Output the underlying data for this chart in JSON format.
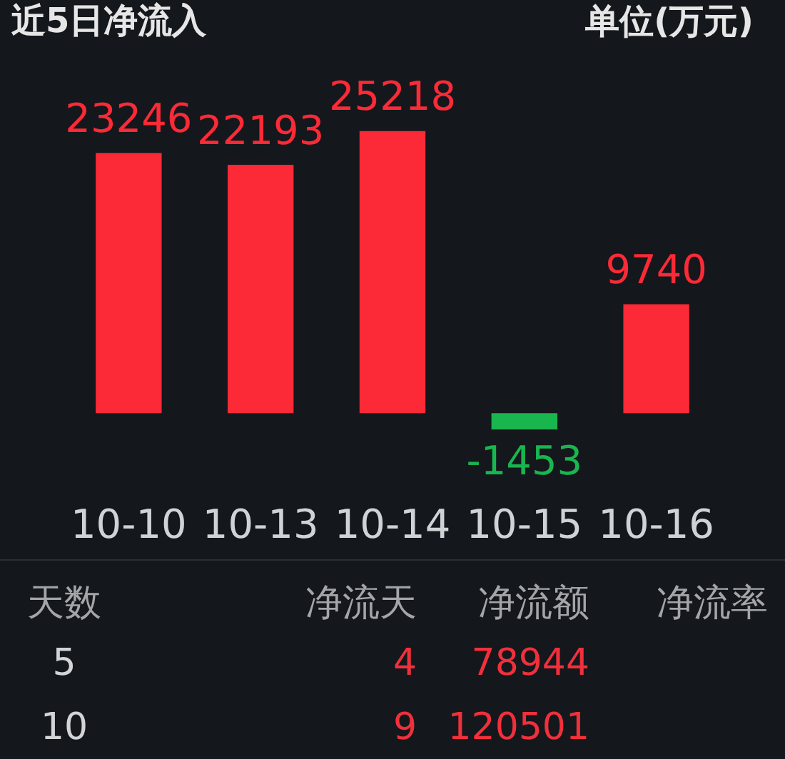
{
  "chart_data": [
    {
      "type": "bar",
      "title": "近5日净流入",
      "annotations": [
        "单位(万元)"
      ],
      "categories": [
        "10-10",
        "10-13",
        "10-14",
        "10-15",
        "10-16"
      ],
      "values": [
        23246,
        22193,
        25218,
        -1453,
        9740
      ],
      "colors": [
        "#fb2a36",
        "#fb2a36",
        "#fb2a36",
        "#19b64f",
        "#fb2a36"
      ],
      "data_labels": true,
      "tick_labels": "x"
    },
    {
      "type": "other",
      "ylabel": "天数",
      "categories": [
        "净流天",
        "净流额",
        "净流率"
      ],
      "y_categories": [
        "5",
        "10"
      ],
      "cell_labels": [
        [
          "4",
          "78944",
          null
        ],
        [
          "9",
          "120501",
          null
        ]
      ],
      "color": "#f0303b"
    }
  ]
}
